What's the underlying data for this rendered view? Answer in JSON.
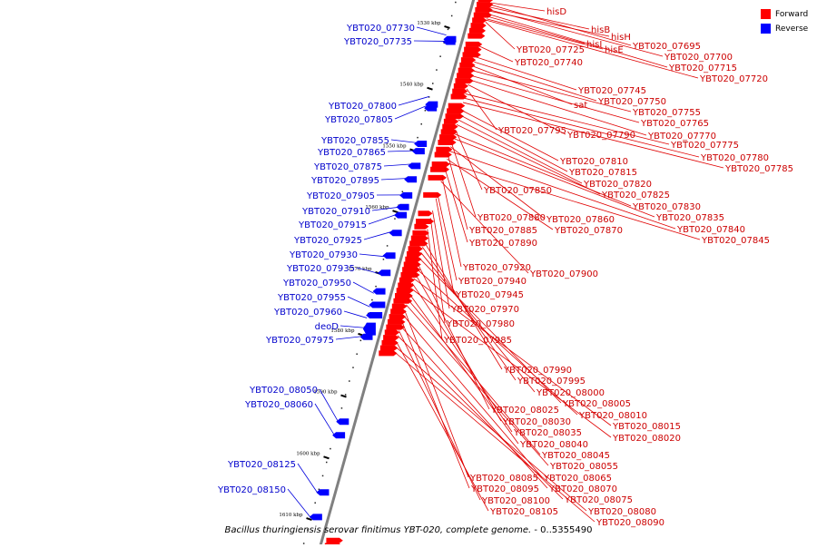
{
  "colors": {
    "forward": "#ff0000",
    "reverse": "#0000ff",
    "axis": "#808080",
    "forward_line": "#e00000",
    "reverse_line": "#0000dd"
  },
  "legend": {
    "forward_label": "Forward",
    "reverse_label": "Reverse"
  },
  "caption": {
    "organism": "Bacillus thuringiensis serovar finitimus YBT-020, complete genome.",
    "range": "- 0..5355490"
  },
  "axis": {
    "start_kbp": 1525,
    "end_kbp": 1615
  },
  "ticks": [
    "1530 kbp",
    "1540 kbp",
    "1550 kbp",
    "1560 kbp",
    "1570 kbp",
    "1580 kbp",
    "1590 kbp",
    "1600 kbp",
    "1610 kbp"
  ],
  "forward_labels": [
    {
      "text": "hisD",
      "kbp": 1526.2
    },
    {
      "text": "hisB",
      "kbp": 1526.9
    },
    {
      "text": "hisH",
      "kbp": 1527.5
    },
    {
      "text": "hisI",
      "kbp": 1528.4
    },
    {
      "text": "hisE",
      "kbp": 1528.8
    },
    {
      "text": "YBT020_07725",
      "kbp": 1529.3
    },
    {
      "text": "YBT020_07695",
      "kbp": 1526.5
    },
    {
      "text": "YBT020_07700",
      "kbp": 1527.3
    },
    {
      "text": "YBT020_07715",
      "kbp": 1528.0
    },
    {
      "text": "YBT020_07720",
      "kbp": 1529.0
    },
    {
      "text": "YBT020_07740",
      "kbp": 1533.2
    },
    {
      "text": "YBT020_07745",
      "kbp": 1535.0
    },
    {
      "text": "YBT020_07750",
      "kbp": 1535.8
    },
    {
      "text": "sat",
      "kbp": 1536.5
    },
    {
      "text": "YBT020_07755",
      "kbp": 1537.2
    },
    {
      "text": "YBT020_07765",
      "kbp": 1538.0
    },
    {
      "text": "YBT020_07770",
      "kbp": 1538.7
    },
    {
      "text": "YBT020_07790",
      "kbp": 1539.5
    },
    {
      "text": "YBT020_07795",
      "kbp": 1540.2
    },
    {
      "text": "YBT020_07775",
      "kbp": 1541.0
    },
    {
      "text": "YBT020_07780",
      "kbp": 1541.7
    },
    {
      "text": "YBT020_07785",
      "kbp": 1542.4
    },
    {
      "text": "YBT020_07810",
      "kbp": 1543.6
    },
    {
      "text": "YBT020_07815",
      "kbp": 1544.4
    },
    {
      "text": "YBT020_07820",
      "kbp": 1545.2
    },
    {
      "text": "YBT020_07825",
      "kbp": 1546.0
    },
    {
      "text": "YBT020_07850",
      "kbp": 1546.8
    },
    {
      "text": "YBT020_07830",
      "kbp": 1547.5
    },
    {
      "text": "YBT020_07835",
      "kbp": 1548.2
    },
    {
      "text": "YBT020_07880",
      "kbp": 1549.0
    },
    {
      "text": "YBT020_07860",
      "kbp": 1549.6
    },
    {
      "text": "YBT020_07840",
      "kbp": 1550.3
    },
    {
      "text": "YBT020_07885",
      "kbp": 1551.0
    },
    {
      "text": "YBT020_07870",
      "kbp": 1551.6
    },
    {
      "text": "YBT020_07845",
      "kbp": 1552.2
    },
    {
      "text": "YBT020_07890",
      "kbp": 1553.0
    },
    {
      "text": "YBT020_07920",
      "kbp": 1554.5
    },
    {
      "text": "YBT020_07900",
      "kbp": 1555.2
    },
    {
      "text": "YBT020_07940",
      "kbp": 1557.2
    },
    {
      "text": "YBT020_07945",
      "kbp": 1558.0
    },
    {
      "text": "YBT020_07970",
      "kbp": 1560.0
    },
    {
      "text": "YBT020_07980",
      "kbp": 1561.2
    },
    {
      "text": "YBT020_07985",
      "kbp": 1563.0
    },
    {
      "text": "YBT020_07990",
      "kbp": 1565.0
    },
    {
      "text": "YBT020_07995",
      "kbp": 1565.9
    },
    {
      "text": "YBT020_08000",
      "kbp": 1566.8
    },
    {
      "text": "YBT020_08005",
      "kbp": 1567.7
    },
    {
      "text": "YBT020_08025",
      "kbp": 1568.6
    },
    {
      "text": "YBT020_08010",
      "kbp": 1569.4
    },
    {
      "text": "YBT020_08030",
      "kbp": 1570.2
    },
    {
      "text": "YBT020_08015",
      "kbp": 1571.0
    },
    {
      "text": "YBT020_08035",
      "kbp": 1571.8
    },
    {
      "text": "YBT020_08020",
      "kbp": 1572.6
    },
    {
      "text": "YBT020_08040",
      "kbp": 1573.5
    },
    {
      "text": "YBT020_08045",
      "kbp": 1574.4
    },
    {
      "text": "YBT020_08055",
      "kbp": 1575.3
    },
    {
      "text": "YBT020_08085",
      "kbp": 1576.2
    },
    {
      "text": "YBT020_08065",
      "kbp": 1577.0
    },
    {
      "text": "YBT020_08095",
      "kbp": 1577.9
    },
    {
      "text": "YBT020_08070",
      "kbp": 1578.7
    },
    {
      "text": "YBT020_08100",
      "kbp": 1579.5
    },
    {
      "text": "YBT020_08075",
      "kbp": 1580.3
    },
    {
      "text": "YBT020_08105",
      "kbp": 1581.2
    },
    {
      "text": "YBT020_08080",
      "kbp": 1582.0
    },
    {
      "text": "YBT020_08090",
      "kbp": 1582.8
    }
  ],
  "reverse_labels": [
    {
      "text": "YBT020_07730",
      "kbp": 1531.0
    },
    {
      "text": "YBT020_07735",
      "kbp": 1532.0
    },
    {
      "text": "YBT020_07800",
      "kbp": 1541.0
    },
    {
      "text": "YBT020_07805",
      "kbp": 1542.5
    },
    {
      "text": "YBT020_07855",
      "kbp": 1548.5
    },
    {
      "text": "YBT020_07865",
      "kbp": 1549.8
    },
    {
      "text": "YBT020_07875",
      "kbp": 1552.0
    },
    {
      "text": "YBT020_07895",
      "kbp": 1554.3
    },
    {
      "text": "YBT020_07905",
      "kbp": 1557.0
    },
    {
      "text": "YBT020_07910",
      "kbp": 1559.0
    },
    {
      "text": "YBT020_07915",
      "kbp": 1560.2
    },
    {
      "text": "YBT020_07925",
      "kbp": 1563.0
    },
    {
      "text": "YBT020_07930",
      "kbp": 1567.0
    },
    {
      "text": "YBT020_07935",
      "kbp": 1569.8
    },
    {
      "text": "YBT020_07950",
      "kbp": 1573.0
    },
    {
      "text": "YBT020_07955",
      "kbp": 1575.2
    },
    {
      "text": "YBT020_07960",
      "kbp": 1577.0
    },
    {
      "text": "deoD",
      "kbp": 1578.6
    },
    {
      "text": "YBT020_07975",
      "kbp": 1580.0
    },
    {
      "text": "YBT020_08050",
      "kbp": 1593.8
    },
    {
      "text": "YBT020_08060",
      "kbp": 1596.0
    },
    {
      "text": "YBT020_08125",
      "kbp": 1605.5
    },
    {
      "text": "YBT020_08150",
      "kbp": 1609.5
    }
  ]
}
